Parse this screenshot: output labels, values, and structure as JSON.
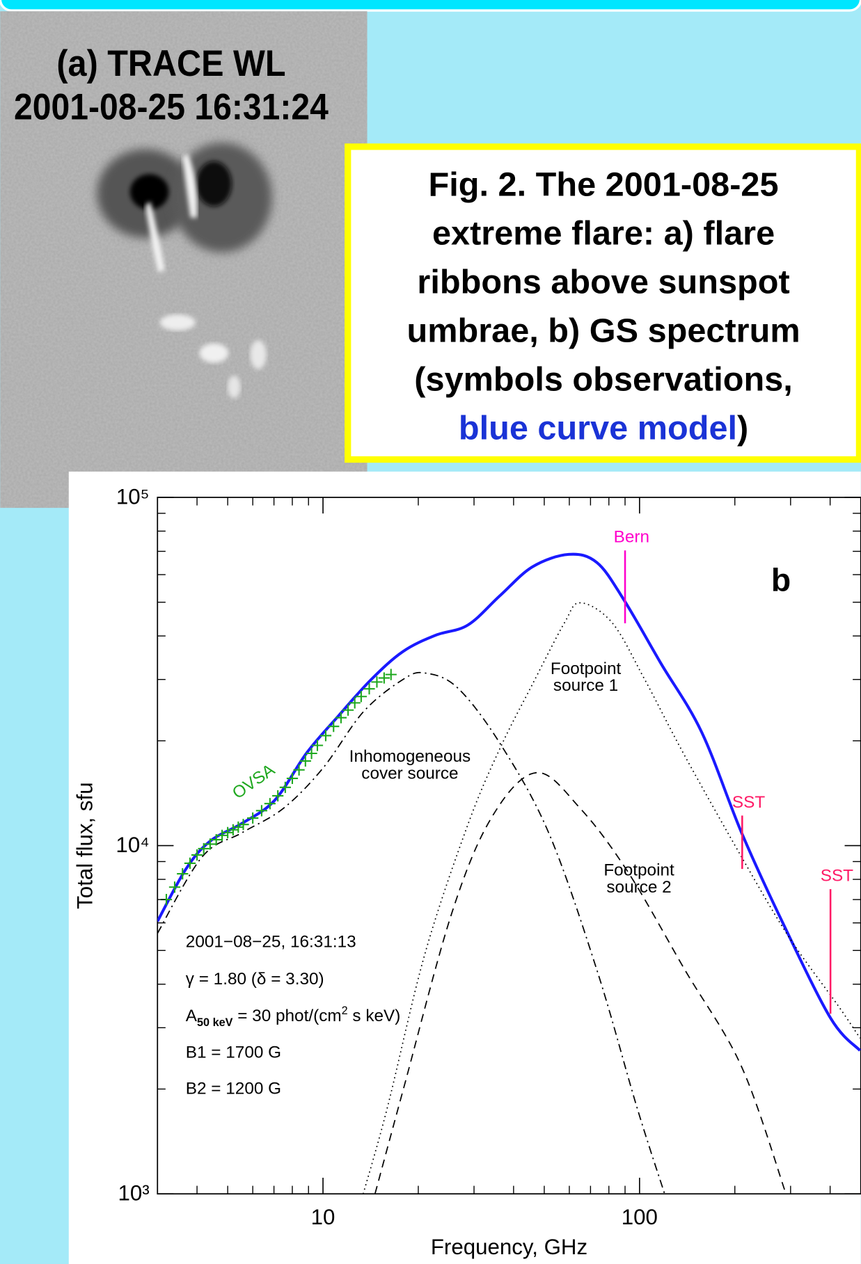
{
  "panel_a": {
    "title": [
      "(a) TRACE WL",
      "2001-08-25 16:31:24"
    ]
  },
  "caption": {
    "lines": [
      "Fig. 2. The 2001-08-25",
      "extreme flare: a) flare",
      "ribbons above sunspot",
      "umbrae, b) GS spectrum",
      "(symbols observations,"
    ],
    "highlight": "blue curve model",
    "end": ")"
  },
  "chart_data": {
    "type": "line",
    "xlabel": "Frequency, GHz",
    "ylabel": "Total flux, sfu",
    "log_x": true,
    "log_y": true,
    "xlim": [
      3,
      500
    ],
    "ylim": [
      1000,
      100000
    ],
    "xticks": [
      10,
      100
    ],
    "yticks": [
      {
        "value": 1000,
        "label": "10³"
      },
      {
        "value": 10000,
        "label": "10⁴"
      },
      {
        "value": 100000,
        "label": "10⁵"
      }
    ],
    "panel_label": "b",
    "series": [
      {
        "color": "#1a1aff",
        "style": "solid",
        "x": [
          3.0,
          3.69,
          4.4,
          5.56,
          7.04,
          8.9,
          11.2,
          14.2,
          17.9,
          22.7,
          28.7,
          36.3,
          45.9,
          59.8,
          73.3,
          88.9,
          117,
          157,
          210,
          282,
          401,
          497
        ],
        "values": [
          6060,
          8570,
          10300,
          11600,
          13500,
          18500,
          23600,
          30000,
          36100,
          40200,
          43000,
          52300,
          63200,
          68600,
          65000,
          51100,
          33300,
          21200,
          10900,
          6060,
          3200,
          2580
        ]
      },
      {
        "color": "#000000",
        "style": "dotted",
        "label": [
          "Footpoint",
          "source 1"
        ],
        "x": [
          13.4,
          16,
          21,
          28.7,
          36.3,
          46,
          57.9,
          64.9,
          82,
          104,
          139,
          210,
          297,
          424,
          497
        ],
        "values": [
          1000,
          1780,
          4900,
          11500,
          19100,
          29200,
          43600,
          49800,
          43600,
          29900,
          18100,
          9280,
          5450,
          3470,
          2800
        ]
      },
      {
        "color": "#000000",
        "style": "dashed",
        "label": [
          "Footpoint",
          "source 2"
        ],
        "x": [
          14.6,
          17.9,
          25.5,
          34.2,
          47.2,
          64.9,
          92.4,
          139,
          210,
          290
        ],
        "values": [
          1000,
          1980,
          6390,
          12100,
          16200,
          12800,
          8340,
          4400,
          2320,
          1000
        ]
      },
      {
        "color": "#000000",
        "style": "dashdot",
        "label": [
          "Inhomogeneous",
          "cover source"
        ],
        "x": [
          3.0,
          4.15,
          5.56,
          7.5,
          10,
          13.4,
          17.9,
          21,
          26.6,
          36.3,
          51.6,
          73.3,
          98,
          120
        ],
        "values": [
          5600,
          9280,
          10900,
          12800,
          16700,
          24200,
          30000,
          31300,
          28400,
          19600,
          10900,
          4400,
          1780,
          1000
        ]
      },
      {
        "name": "OVSA",
        "color": "#1fa81f",
        "style": "plus",
        "x": [
          3.2,
          3.4,
          3.6,
          3.8,
          4.0,
          4.2,
          4.4,
          4.6,
          4.8,
          5.0,
          5.2,
          5.4,
          5.6,
          6.0,
          6.4,
          6.8,
          7.2,
          7.6,
          8.0,
          8.4,
          8.8,
          9.2,
          9.6,
          10.2,
          10.8,
          11.4,
          12.0,
          12.6,
          13.2,
          14.0,
          14.8,
          15.6,
          16.4
        ],
        "values": [
          7000,
          7600,
          8300,
          8900,
          9400,
          9800,
          10100,
          10400,
          10700,
          10900,
          11100,
          11300,
          11500,
          12000,
          12600,
          13200,
          13900,
          14700,
          15600,
          16500,
          17500,
          18400,
          19400,
          20700,
          22000,
          23300,
          24500,
          25700,
          26800,
          28200,
          29500,
          30300,
          31000
        ]
      }
    ],
    "markers": [
      {
        "label": "Bern",
        "color": "#ff00cc",
        "x": 90,
        "low": 43500,
        "high": 70400
      },
      {
        "label": "SST",
        "color": "#ff1a66",
        "x": 211,
        "low": 8570,
        "high": 12200
      },
      {
        "label": "SST",
        "color": "#ff1a66",
        "x": 401,
        "low": 3290,
        "high": 7500
      }
    ],
    "parameters": {
      "date": "2001−08−25, 16:31:13",
      "gamma": "γ = 1.80 (δ = 3.30)",
      "a_base": "A",
      "a_sub": "50 keV",
      "a_mid": " = 30 phot/(cm",
      "a_sup": "2",
      "a_end": " s keV)",
      "b1": "B1 = 1700 G",
      "b2": "B2 = 1200 G"
    }
  }
}
